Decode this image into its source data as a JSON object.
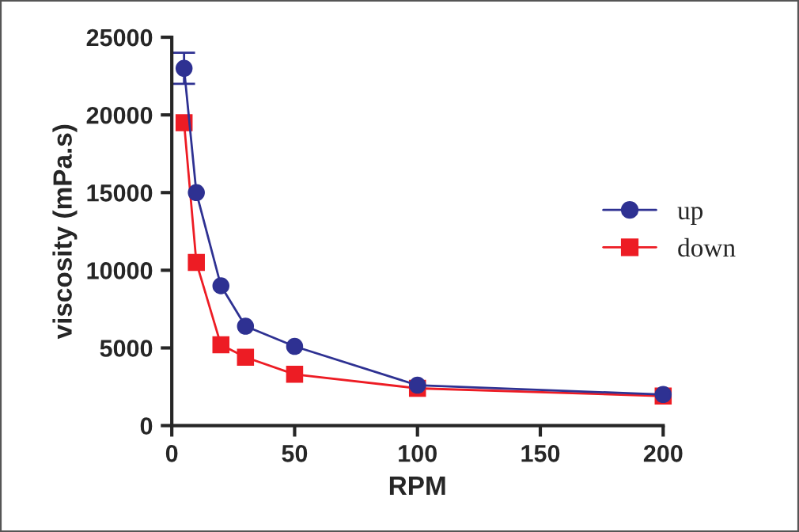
{
  "chart_data": {
    "type": "line",
    "xlabel": "RPM",
    "ylabel": "viscosity (mPa.s)",
    "x": [
      5,
      10,
      20,
      30,
      50,
      100,
      200
    ],
    "series": [
      {
        "name": "up",
        "color": "#2e3192",
        "marker": "circle",
        "values": [
          23000,
          15000,
          9000,
          6400,
          5100,
          2600,
          2000
        ],
        "errors": [
          1000,
          null,
          null,
          null,
          null,
          null,
          null
        ]
      },
      {
        "name": "down",
        "color": "#ed1c24",
        "marker": "square",
        "values": [
          19500,
          10500,
          5200,
          4400,
          3300,
          2400,
          1900
        ]
      }
    ],
    "xlim": [
      0,
      200
    ],
    "xticks": [
      0,
      50,
      100,
      150,
      200
    ],
    "ylim": [
      0,
      25000
    ],
    "yticks": [
      0,
      5000,
      10000,
      15000,
      20000,
      25000
    ],
    "grid": false,
    "legend": "right",
    "line_style": "solid"
  }
}
